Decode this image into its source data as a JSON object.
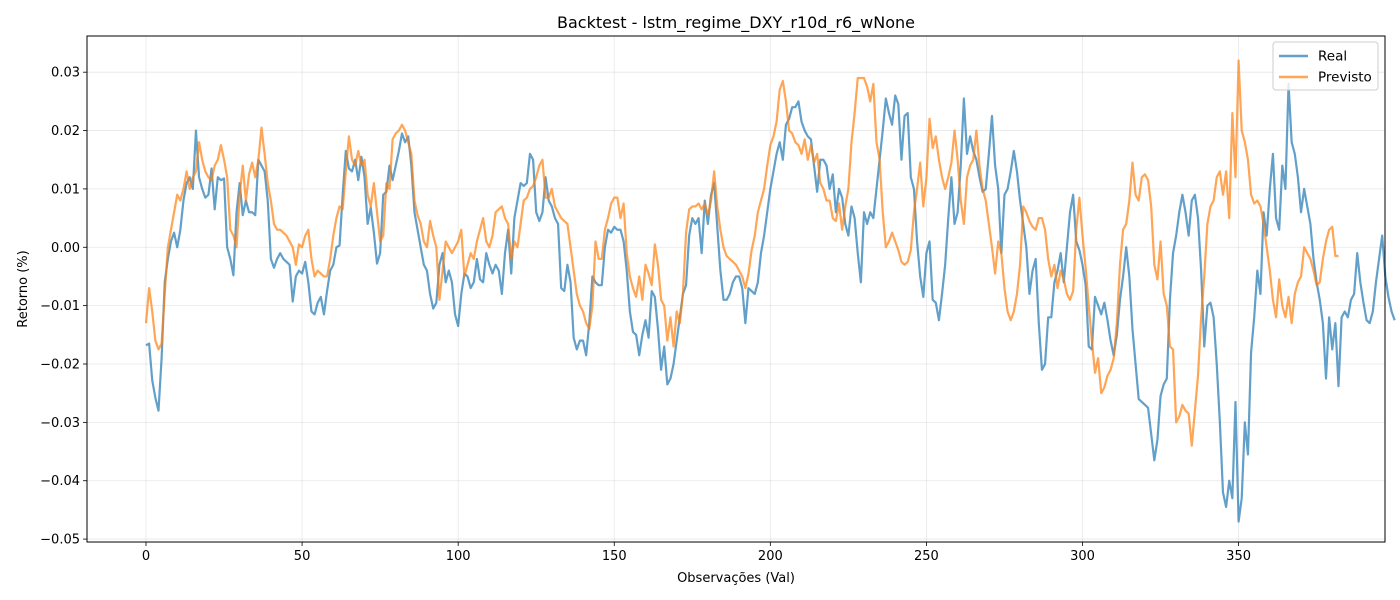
{
  "chart_data": {
    "type": "line",
    "title": "Backtest - lstm_regime_DXY_r10d_r6_wNone",
    "xlabel": "Observações (Val)",
    "ylabel": "Retorno (%)",
    "xlim": [
      -18.9,
      396.9
    ],
    "ylim": [
      -0.0505,
      0.0362
    ],
    "xticks": [
      0,
      50,
      100,
      150,
      200,
      250,
      300,
      350
    ],
    "xtick_labels": [
      "0",
      "50",
      "100",
      "150",
      "200",
      "250",
      "300",
      "350"
    ],
    "yticks": [
      -0.05,
      -0.04,
      -0.03,
      -0.02,
      -0.01,
      0.0,
      0.01,
      0.02,
      0.03
    ],
    "ytick_labels": [
      "−0.05",
      "−0.04",
      "−0.03",
      "−0.02",
      "−0.01",
      "0.00",
      "0.01",
      "0.02",
      "0.03"
    ],
    "grid": true,
    "legend_position": "top-right",
    "series": [
      {
        "name": "Real",
        "color": "#1f77b4",
        "values": [
          -0.0168,
          -0.0165,
          -0.0228,
          -0.0258,
          -0.028,
          -0.019,
          -0.006,
          -0.002,
          0.001,
          0.0025,
          0.0,
          0.003,
          0.008,
          0.011,
          0.012,
          0.01,
          0.02,
          0.012,
          0.01,
          0.0085,
          0.009,
          0.0135,
          0.0065,
          0.012,
          0.0115,
          0.0118,
          0.0,
          -0.002,
          -0.0048,
          0.006,
          0.011,
          0.0055,
          0.008,
          0.006,
          0.006,
          0.0055,
          0.015,
          0.014,
          0.013,
          0.008,
          -0.002,
          -0.0035,
          -0.002,
          -0.001,
          -0.002,
          -0.0025,
          -0.003,
          -0.0093,
          -0.005,
          -0.004,
          -0.0045,
          -0.0025,
          -0.006,
          -0.011,
          -0.0115,
          -0.0095,
          -0.0085,
          -0.0115,
          -0.0075,
          -0.004,
          -0.003,
          0.0,
          0.0003,
          0.009,
          0.0165,
          0.0135,
          0.013,
          0.015,
          0.0115,
          0.0155,
          0.012,
          0.004,
          0.0068,
          0.0025,
          -0.0028,
          -0.001,
          0.009,
          0.0095,
          0.014,
          0.0115,
          0.014,
          0.0165,
          0.0195,
          0.018,
          0.019,
          0.014,
          0.006,
          0.003,
          0.0,
          -0.003,
          -0.004,
          -0.008,
          -0.0105,
          -0.0095,
          -0.003,
          -0.001,
          -0.006,
          -0.004,
          -0.006,
          -0.0115,
          -0.0135,
          -0.008,
          -0.0045,
          -0.005,
          -0.007,
          -0.006,
          -0.002,
          -0.0055,
          -0.006,
          -0.001,
          -0.003,
          -0.0045,
          -0.003,
          -0.004,
          -0.008,
          -0.001,
          0.003,
          -0.0045,
          0.005,
          0.008,
          0.011,
          0.0105,
          0.011,
          0.016,
          0.015,
          0.006,
          0.0045,
          0.006,
          0.012,
          0.008,
          0.007,
          0.005,
          0.004,
          -0.007,
          -0.0075,
          -0.003,
          -0.006,
          -0.0155,
          -0.0175,
          -0.016,
          -0.016,
          -0.0185,
          -0.013,
          -0.005,
          -0.006,
          -0.0065,
          -0.0065,
          0.0,
          0.003,
          0.0025,
          0.0035,
          0.003,
          0.003,
          0.001,
          -0.004,
          -0.011,
          -0.0145,
          -0.015,
          -0.0185,
          -0.015,
          -0.0125,
          -0.0155,
          -0.0075,
          -0.0085,
          -0.014,
          -0.021,
          -0.017,
          -0.0235,
          -0.0225,
          -0.02,
          -0.016,
          -0.012,
          -0.008,
          -0.0065,
          0.002,
          0.005,
          0.004,
          0.005,
          -0.001,
          0.008,
          0.004,
          0.009,
          0.011,
          0.0035,
          -0.004,
          -0.009,
          -0.009,
          -0.008,
          -0.006,
          -0.005,
          -0.005,
          -0.007,
          -0.013,
          -0.007,
          -0.0075,
          -0.008,
          -0.006,
          -0.001,
          0.002,
          0.006,
          0.01,
          0.013,
          0.016,
          0.018,
          0.015,
          0.021,
          0.022,
          0.024,
          0.024,
          0.025,
          0.0215,
          0.02,
          0.019,
          0.0185,
          0.014,
          0.0095,
          0.015,
          0.015,
          0.014,
          0.01,
          0.0125,
          0.006,
          0.01,
          0.0085,
          0.004,
          0.002,
          0.007,
          0.005,
          -0.001,
          -0.006,
          0.006,
          0.004,
          0.006,
          0.005,
          0.01,
          0.015,
          0.02,
          0.0255,
          0.023,
          0.021,
          0.026,
          0.0245,
          0.015,
          0.0225,
          0.023,
          0.012,
          0.01,
          0.001,
          -0.005,
          -0.0085,
          -0.001,
          0.001,
          -0.009,
          -0.0095,
          -0.0125,
          -0.008,
          -0.003,
          0.005,
          0.012,
          0.004,
          0.006,
          0.014,
          0.0255,
          0.016,
          0.019,
          0.0165,
          0.015,
          0.012,
          0.0095,
          0.01,
          0.016,
          0.0225,
          0.014,
          0.01,
          -0.001,
          0.009,
          0.01,
          0.013,
          0.0165,
          0.013,
          0.008,
          0.004,
          0.0,
          -0.008,
          -0.004,
          -0.002,
          -0.013,
          -0.021,
          -0.02,
          -0.012,
          -0.012,
          -0.006,
          -0.004,
          -0.001,
          -0.006,
          0.0,
          0.006,
          0.009,
          0.001,
          -0.0005,
          -0.003,
          -0.0065,
          -0.017,
          -0.0175,
          -0.0085,
          -0.01,
          -0.0115,
          -0.0095,
          -0.0125,
          -0.016,
          -0.0185,
          -0.015,
          -0.009,
          -0.005,
          0.0,
          -0.005,
          -0.014,
          -0.02,
          -0.026,
          -0.0265,
          -0.027,
          -0.0275,
          -0.032,
          -0.0365,
          -0.033,
          -0.0255,
          -0.0235,
          -0.0225,
          -0.009,
          -0.001,
          0.002,
          0.006,
          0.009,
          0.006,
          0.002,
          0.008,
          0.009,
          0.005,
          -0.004,
          -0.017,
          -0.01,
          -0.0095,
          -0.012,
          -0.02,
          -0.03,
          -0.042,
          -0.0445,
          -0.04,
          -0.043,
          -0.0265,
          -0.047,
          -0.043,
          -0.03,
          -0.0355,
          -0.018,
          -0.012,
          -0.004,
          -0.008,
          0.006,
          0.002,
          0.01,
          0.016,
          0.005,
          0.003,
          0.014,
          0.01,
          0.028,
          0.018,
          0.016,
          0.012,
          0.006,
          0.01,
          0.007,
          0.004,
          -0.002,
          -0.006,
          -0.009,
          -0.013,
          -0.0225,
          -0.012,
          -0.0175,
          -0.013,
          -0.0238,
          -0.012,
          -0.011,
          -0.012,
          -0.009,
          -0.008,
          -0.001,
          -0.006,
          -0.0095,
          -0.0125,
          -0.013,
          -0.011,
          -0.006,
          -0.002,
          0.002,
          -0.005,
          -0.0085,
          -0.011,
          -0.0125
        ]
      },
      {
        "name": "Previsto",
        "color": "#ff7f0e",
        "values": [
          -0.013,
          -0.007,
          -0.011,
          -0.016,
          -0.0175,
          -0.0165,
          -0.008,
          0.0,
          0.003,
          0.006,
          0.009,
          0.008,
          0.01,
          0.013,
          0.01,
          0.012,
          0.013,
          0.018,
          0.015,
          0.013,
          0.012,
          0.0115,
          0.014,
          0.015,
          0.0175,
          0.015,
          0.012,
          0.003,
          0.002,
          0.0,
          0.009,
          0.014,
          0.008,
          0.0125,
          0.0145,
          0.012,
          0.015,
          0.0205,
          0.016,
          0.011,
          0.008,
          0.004,
          0.003,
          0.003,
          0.0025,
          0.002,
          0.001,
          0.0,
          -0.003,
          0.0005,
          0.0,
          0.002,
          0.003,
          -0.002,
          -0.005,
          -0.004,
          -0.0045,
          -0.005,
          -0.005,
          -0.002,
          0.002,
          0.005,
          0.007,
          0.0065,
          0.013,
          0.019,
          0.015,
          0.014,
          0.0165,
          0.014,
          0.015,
          0.009,
          0.007,
          0.011,
          0.006,
          0.001,
          0.002,
          0.011,
          0.01,
          0.0185,
          0.0195,
          0.02,
          0.021,
          0.02,
          0.018,
          0.016,
          0.008,
          0.0055,
          0.004,
          0.001,
          0.0,
          0.0045,
          0.002,
          0.0,
          -0.009,
          -0.004,
          0.001,
          0.0,
          -0.001,
          0.0,
          0.001,
          0.003,
          -0.005,
          -0.003,
          -0.001,
          -0.002,
          0.001,
          0.003,
          0.005,
          0.001,
          0.0,
          0.002,
          0.006,
          0.0065,
          0.007,
          0.005,
          0.004,
          -0.002,
          0.001,
          0.0,
          0.004,
          0.008,
          0.0085,
          0.01,
          0.0105,
          0.012,
          0.014,
          0.015,
          0.0085,
          0.0085,
          0.01,
          0.007,
          0.006,
          0.005,
          0.0045,
          0.004,
          0.0,
          -0.004,
          -0.008,
          -0.01,
          -0.011,
          -0.013,
          -0.014,
          -0.01,
          0.001,
          -0.002,
          -0.002,
          0.003,
          0.005,
          0.0075,
          0.0085,
          0.0085,
          0.005,
          0.0075,
          -0.001,
          -0.005,
          -0.007,
          -0.0085,
          -0.005,
          -0.009,
          -0.003,
          -0.0045,
          -0.0065,
          0.0005,
          -0.003,
          -0.009,
          -0.01,
          -0.016,
          -0.012,
          -0.017,
          -0.011,
          -0.013,
          -0.008,
          0.0025,
          0.0065,
          0.007,
          0.007,
          0.0075,
          0.0065,
          0.0075,
          0.0055,
          0.008,
          0.013,
          0.007,
          0.003,
          0.0,
          -0.0015,
          -0.002,
          -0.0025,
          -0.003,
          -0.004,
          -0.005,
          -0.007,
          -0.0045,
          -0.0005,
          0.002,
          0.006,
          0.008,
          0.01,
          0.014,
          0.0175,
          0.019,
          0.0215,
          0.027,
          0.0285,
          0.025,
          0.02,
          0.0195,
          0.018,
          0.0175,
          0.016,
          0.0185,
          0.015,
          0.0175,
          0.0145,
          0.016,
          0.011,
          0.01,
          0.008,
          0.008,
          0.005,
          0.0045,
          0.0075,
          0.003,
          0.007,
          0.01,
          0.018,
          0.023,
          0.029,
          0.029,
          0.029,
          0.0275,
          0.025,
          0.028,
          0.018,
          0.015,
          0.006,
          0.0,
          0.001,
          0.0025,
          0.001,
          -0.0005,
          -0.0025,
          -0.003,
          -0.0025,
          -0.0005,
          0.006,
          0.01,
          0.0145,
          0.007,
          0.012,
          0.022,
          0.017,
          0.019,
          0.015,
          0.012,
          0.01,
          0.012,
          0.0145,
          0.02,
          0.015,
          0.008,
          0.004,
          0.012,
          0.014,
          0.015,
          0.02,
          0.014,
          0.01,
          0.008,
          0.004,
          0.0,
          -0.0045,
          0.001,
          -0.001,
          -0.007,
          -0.011,
          -0.0125,
          -0.011,
          -0.008,
          -0.003,
          0.007,
          0.006,
          0.0045,
          0.0035,
          0.003,
          0.005,
          0.005,
          0.003,
          -0.002,
          -0.005,
          -0.003,
          -0.007,
          -0.004,
          -0.0055,
          -0.008,
          -0.009,
          -0.0075,
          0.003,
          0.0085,
          0.002,
          -0.0035,
          -0.01,
          -0.016,
          -0.0215,
          -0.019,
          -0.025,
          -0.024,
          -0.022,
          -0.021,
          -0.019,
          -0.013,
          -0.003,
          0.003,
          0.004,
          0.008,
          0.0145,
          0.009,
          0.008,
          0.012,
          0.0125,
          0.0115,
          0.007,
          -0.003,
          -0.0055,
          0.001,
          -0.008,
          -0.01,
          -0.017,
          -0.0175,
          -0.03,
          -0.029,
          -0.027,
          -0.028,
          -0.0285,
          -0.034,
          -0.028,
          -0.022,
          -0.012,
          -0.005,
          0.004,
          0.007,
          0.008,
          0.012,
          0.013,
          0.009,
          0.013,
          0.005,
          0.023,
          0.012,
          0.032,
          0.02,
          0.018,
          0.015,
          0.009,
          0.0075,
          0.008,
          0.007,
          0.004,
          0.0,
          -0.004,
          -0.009,
          -0.012,
          -0.0055,
          -0.01,
          -0.012,
          -0.0085,
          -0.013,
          -0.008,
          -0.006,
          -0.005,
          0.0,
          -0.001,
          -0.002,
          -0.004,
          -0.0065,
          -0.006,
          -0.002,
          0.001,
          0.003,
          0.0035,
          -0.0015,
          -0.0015
        ]
      }
    ]
  }
}
